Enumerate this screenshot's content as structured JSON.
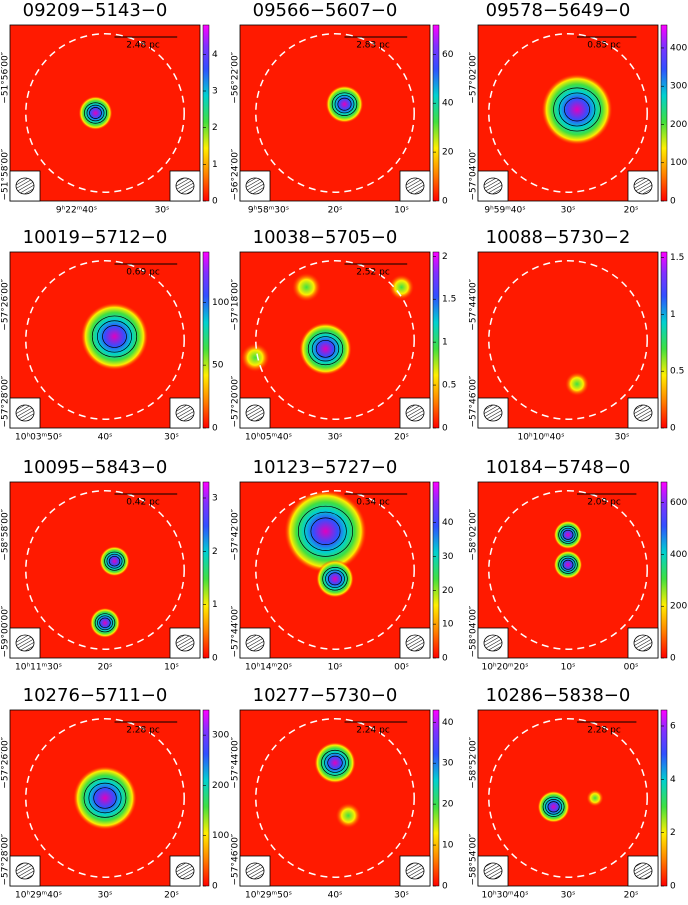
{
  "chart_data": [
    {
      "type": "image",
      "title": "09209−5143−0",
      "scale_label": "2.48 pc",
      "ylim": [
        0,
        4.8
      ],
      "yticks": [
        0,
        1,
        2,
        3,
        4
      ],
      "x_labels": [
        "9ʰ22ᵐ40ˢ",
        "30ˢ"
      ],
      "y_labels": [
        "−51°56′00″",
        "−51°58′00″"
      ]
    },
    {
      "type": "image",
      "title": "09566−5607−0",
      "scale_label": "2.83 pc",
      "ylim": [
        0,
        72
      ],
      "yticks": [
        0,
        20,
        40,
        60
      ],
      "x_labels": [
        "9ʰ58ᵐ30ˢ",
        "20ˢ",
        "10ˢ"
      ],
      "y_labels": [
        "−56°22′00″",
        "−56°24′00″"
      ]
    },
    {
      "type": "image",
      "title": "09578−5649−0",
      "scale_label": "0.85 pc",
      "ylim": [
        0,
        460
      ],
      "yticks": [
        0,
        100,
        200,
        300,
        400
      ],
      "x_labels": [
        "9ʰ59ᵐ40ˢ",
        "30ˢ",
        "20ˢ"
      ],
      "y_labels": [
        "−57°02′00″",
        "−57°04′00″"
      ]
    },
    {
      "type": "image",
      "title": "10019−5712−0",
      "scale_label": "0.69 pc",
      "ylim": [
        0,
        140
      ],
      "yticks": [
        0,
        50,
        100
      ],
      "x_labels": [
        "10ʰ03ᵐ50ˢ",
        "40ˢ",
        "30ˢ"
      ],
      "y_labels": [
        "−57°26′00″",
        "−57°28′00″"
      ]
    },
    {
      "type": "image",
      "title": "10038−5705−0",
      "scale_label": "2.52 pc",
      "ylim": [
        0,
        2.05
      ],
      "yticks": [
        0,
        0.5,
        1,
        1.5,
        2
      ],
      "x_labels": [
        "10ʰ05ᵐ40ˢ",
        "30ˢ",
        "20ˢ"
      ],
      "y_labels": [
        "−57°18′00″",
        "−57°20′00″"
      ]
    },
    {
      "type": "image",
      "title": "10088−5730−2",
      "ylim": [
        0,
        1.55
      ],
      "yticks": [
        0,
        0.5,
        1,
        1.5
      ],
      "x_labels": [
        "10ʰ10ᵐ40ˢ",
        "30ˢ"
      ],
      "y_labels": [
        "−57°44′00″",
        "−57°46′00″"
      ]
    },
    {
      "type": "image",
      "title": "10095−5843−0",
      "scale_label": "0.42 pc",
      "ylim": [
        0,
        3.3
      ],
      "yticks": [
        0,
        1,
        2,
        3
      ],
      "x_labels": [
        "10ʰ11ᵐ30ˢ",
        "20ˢ",
        "10ˢ"
      ],
      "y_labels": [
        "−58°58′00″",
        "−59°00′00″"
      ]
    },
    {
      "type": "image",
      "title": "10123−5727−0",
      "scale_label": "0.34 pc",
      "ylim": [
        0,
        52
      ],
      "yticks": [
        0,
        10,
        20,
        30,
        40
      ],
      "x_labels": [
        "10ʰ14ᵐ20ˢ",
        "10ˢ",
        "00ˢ"
      ],
      "y_labels": [
        "−57°42′00″",
        "−57°44′00″"
      ]
    },
    {
      "type": "image",
      "title": "10184−5748−0",
      "scale_label": "2.09 pc",
      "ylim": [
        0,
        680
      ],
      "yticks": [
        0,
        200,
        400,
        600
      ],
      "x_labels": [
        "10ʰ20ᵐ20ˢ",
        "10ˢ",
        "00ˢ"
      ],
      "y_labels": [
        "−58°02′00″",
        "−58°04′00″"
      ]
    },
    {
      "type": "image",
      "title": "10276−5711−0",
      "scale_label": "2.28 pc",
      "ylim": [
        0,
        350
      ],
      "yticks": [
        0,
        100,
        200,
        300
      ],
      "x_labels": [
        "10ʰ29ᵐ40ˢ",
        "30ˢ",
        "20ˢ"
      ],
      "y_labels": [
        "−57°26′00″",
        "−57°28′00″"
      ]
    },
    {
      "type": "image",
      "title": "10277−5730−0",
      "scale_label": "2.24 pc",
      "ylim": [
        0,
        43
      ],
      "yticks": [
        0,
        10,
        20,
        30,
        40
      ],
      "x_labels": [
        "10ʰ29ᵐ50ˢ",
        "40ˢ",
        "30ˢ"
      ],
      "y_labels": [
        "−57°44′00″",
        "−57°46′00″"
      ]
    },
    {
      "type": "image",
      "title": "10286−5838−0",
      "scale_label": "2.28 pc",
      "ylim": [
        0,
        6.6
      ],
      "yticks": [
        0,
        2,
        4,
        6
      ],
      "x_labels": [
        "10ʰ30ᵐ40ˢ",
        "30ˢ",
        "20ˢ"
      ],
      "y_labels": [
        "−58°52′00″",
        "−58°54′00″"
      ]
    }
  ]
}
